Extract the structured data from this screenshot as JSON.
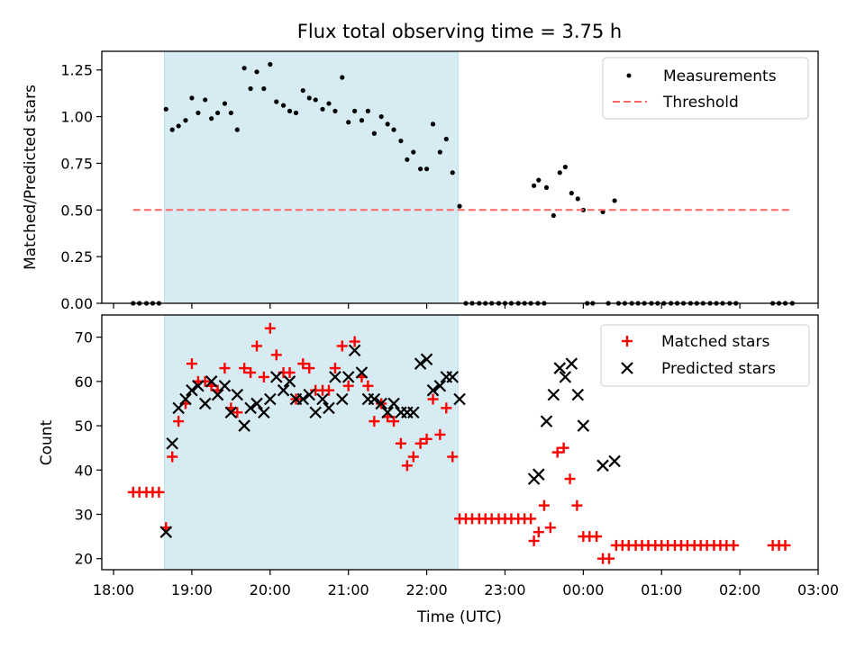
{
  "figure": {
    "title": "Flux total observing time = 3.75 h",
    "xlabel": "Time (UTC)",
    "xtick_labels": [
      "18:00",
      "19:00",
      "20:00",
      "21:00",
      "22:00",
      "23:00",
      "00:00",
      "01:00",
      "02:00",
      "03:00"
    ]
  },
  "chart_data": [
    {
      "type": "scatter",
      "ylabel": "Matched/Predicted stars",
      "ylim": [
        0,
        1.35
      ],
      "yticks": [
        0.0,
        0.25,
        0.5,
        0.75,
        1.0,
        1.25
      ],
      "ytick_labels": [
        "0.00",
        "0.25",
        "0.50",
        "0.75",
        "1.00",
        "1.25"
      ],
      "x_unit": "hours since 18:00 UTC",
      "xlim": [
        -0.15,
        9.0
      ],
      "grid": false,
      "legend": "top-right",
      "shaded_interval": {
        "x": [
          0.65,
          4.4
        ],
        "color": "#add8e6"
      },
      "series": [
        {
          "name": "Measurements",
          "marker": "dot",
          "color": "#000000",
          "points": [
            [
              0.25,
              0
            ],
            [
              0.33,
              0
            ],
            [
              0.42,
              0
            ],
            [
              0.5,
              0
            ],
            [
              0.58,
              0
            ],
            [
              0.67,
              1.04
            ],
            [
              0.75,
              0.93
            ],
            [
              0.83,
              0.95
            ],
            [
              0.92,
              0.98
            ],
            [
              1.0,
              1.1
            ],
            [
              1.08,
              1.02
            ],
            [
              1.17,
              1.09
            ],
            [
              1.25,
              0.99
            ],
            [
              1.33,
              1.02
            ],
            [
              1.42,
              1.07
            ],
            [
              1.5,
              1.02
            ],
            [
              1.58,
              0.93
            ],
            [
              1.67,
              1.26
            ],
            [
              1.75,
              1.15
            ],
            [
              1.83,
              1.24
            ],
            [
              1.92,
              1.15
            ],
            [
              2.0,
              1.28
            ],
            [
              2.08,
              1.08
            ],
            [
              2.17,
              1.06
            ],
            [
              2.25,
              1.03
            ],
            [
              2.33,
              1.02
            ],
            [
              2.42,
              1.14
            ],
            [
              2.5,
              1.1
            ],
            [
              2.58,
              1.09
            ],
            [
              2.67,
              1.04
            ],
            [
              2.75,
              1.07
            ],
            [
              2.83,
              1.03
            ],
            [
              2.92,
              1.21
            ],
            [
              3.0,
              0.97
            ],
            [
              3.08,
              1.03
            ],
            [
              3.17,
              0.98
            ],
            [
              3.25,
              1.03
            ],
            [
              3.33,
              0.91
            ],
            [
              3.42,
              1.0
            ],
            [
              3.5,
              0.96
            ],
            [
              3.58,
              0.93
            ],
            [
              3.67,
              0.87
            ],
            [
              3.75,
              0.77
            ],
            [
              3.83,
              0.81
            ],
            [
              3.92,
              0.72
            ],
            [
              4.0,
              0.72
            ],
            [
              4.08,
              0.96
            ],
            [
              4.17,
              0.81
            ],
            [
              4.25,
              0.88
            ],
            [
              4.33,
              0.7
            ],
            [
              4.42,
              0.52
            ],
            [
              4.5,
              0
            ],
            [
              4.58,
              0
            ],
            [
              4.67,
              0
            ],
            [
              4.75,
              0
            ],
            [
              4.83,
              0
            ],
            [
              4.92,
              0
            ],
            [
              5.0,
              0
            ],
            [
              5.08,
              0
            ],
            [
              5.17,
              0
            ],
            [
              5.25,
              0
            ],
            [
              5.33,
              0
            ],
            [
              5.42,
              0
            ],
            [
              5.5,
              0
            ],
            [
              5.37,
              0.63
            ],
            [
              5.43,
              0.66
            ],
            [
              5.53,
              0.62
            ],
            [
              5.62,
              0.47
            ],
            [
              5.7,
              0.7
            ],
            [
              5.77,
              0.73
            ],
            [
              5.85,
              0.59
            ],
            [
              5.93,
              0.56
            ],
            [
              6.0,
              0.5
            ],
            [
              6.05,
              0
            ],
            [
              6.12,
              0
            ],
            [
              6.25,
              0.49
            ],
            [
              6.32,
              0
            ],
            [
              6.4,
              0.55
            ],
            [
              6.45,
              0
            ],
            [
              6.53,
              0
            ],
            [
              6.62,
              0
            ],
            [
              6.7,
              0
            ],
            [
              6.78,
              0
            ],
            [
              6.87,
              0
            ],
            [
              6.95,
              0
            ],
            [
              7.03,
              0
            ],
            [
              7.12,
              0
            ],
            [
              7.2,
              0
            ],
            [
              7.28,
              0
            ],
            [
              7.37,
              0
            ],
            [
              7.45,
              0
            ],
            [
              7.53,
              0
            ],
            [
              7.62,
              0
            ],
            [
              7.7,
              0
            ],
            [
              7.78,
              0
            ],
            [
              7.87,
              0
            ],
            [
              7.95,
              0
            ],
            [
              8.42,
              0
            ],
            [
              8.5,
              0
            ],
            [
              8.58,
              0
            ],
            [
              8.67,
              0
            ]
          ]
        },
        {
          "name": "Threshold",
          "marker": "dashed-line",
          "color": "#ff6666",
          "points": [
            [
              0.25,
              0.5
            ],
            [
              8.67,
              0.5
            ]
          ]
        }
      ]
    },
    {
      "type": "scatter",
      "ylabel": "Count",
      "ylim": [
        17.5,
        75
      ],
      "yticks": [
        20,
        30,
        40,
        50,
        60,
        70
      ],
      "ytick_labels": [
        "20",
        "30",
        "40",
        "50",
        "60",
        "70"
      ],
      "x_unit": "hours since 18:00 UTC",
      "xlim": [
        -0.15,
        9.0
      ],
      "grid": false,
      "legend": "top-right",
      "shaded_interval": {
        "x": [
          0.65,
          4.4
        ],
        "color": "#add8e6"
      },
      "series": [
        {
          "name": "Matched stars",
          "marker": "plus",
          "color": "#ff0000",
          "points": [
            [
              0.25,
              35
            ],
            [
              0.33,
              35
            ],
            [
              0.42,
              35
            ],
            [
              0.5,
              35
            ],
            [
              0.58,
              35
            ],
            [
              0.67,
              27
            ],
            [
              0.75,
              43
            ],
            [
              0.83,
              51
            ],
            [
              0.92,
              55
            ],
            [
              1.0,
              64
            ],
            [
              1.08,
              60
            ],
            [
              1.17,
              60
            ],
            [
              1.25,
              59
            ],
            [
              1.33,
              58
            ],
            [
              1.42,
              63
            ],
            [
              1.5,
              54
            ],
            [
              1.58,
              53
            ],
            [
              1.67,
              63
            ],
            [
              1.75,
              62
            ],
            [
              1.83,
              68
            ],
            [
              1.92,
              61
            ],
            [
              2.0,
              72
            ],
            [
              2.08,
              66
            ],
            [
              2.17,
              62
            ],
            [
              2.25,
              62
            ],
            [
              2.33,
              56
            ],
            [
              2.42,
              64
            ],
            [
              2.5,
              63
            ],
            [
              2.58,
              58
            ],
            [
              2.67,
              58
            ],
            [
              2.75,
              58
            ],
            [
              2.83,
              63
            ],
            [
              2.92,
              68
            ],
            [
              3.0,
              59
            ],
            [
              3.08,
              69
            ],
            [
              3.17,
              61
            ],
            [
              3.25,
              59
            ],
            [
              3.33,
              51
            ],
            [
              3.42,
              55
            ],
            [
              3.5,
              52
            ],
            [
              3.58,
              51
            ],
            [
              3.67,
              46
            ],
            [
              3.75,
              41
            ],
            [
              3.83,
              43
            ],
            [
              3.92,
              46
            ],
            [
              4.0,
              47
            ],
            [
              4.08,
              56
            ],
            [
              4.17,
              48
            ],
            [
              4.25,
              54
            ],
            [
              4.33,
              43
            ],
            [
              4.42,
              29
            ],
            [
              4.5,
              29
            ],
            [
              4.58,
              29
            ],
            [
              4.67,
              29
            ],
            [
              4.75,
              29
            ],
            [
              4.83,
              29
            ],
            [
              4.92,
              29
            ],
            [
              5.0,
              29
            ],
            [
              5.08,
              29
            ],
            [
              5.17,
              29
            ],
            [
              5.25,
              29
            ],
            [
              5.33,
              29
            ],
            [
              5.37,
              24
            ],
            [
              5.43,
              26
            ],
            [
              5.5,
              32
            ],
            [
              5.58,
              27
            ],
            [
              5.67,
              44
            ],
            [
              5.75,
              45
            ],
            [
              5.83,
              38
            ],
            [
              5.92,
              32
            ],
            [
              6.0,
              25
            ],
            [
              6.08,
              25
            ],
            [
              6.17,
              25
            ],
            [
              6.25,
              20
            ],
            [
              6.33,
              20
            ],
            [
              6.42,
              23
            ],
            [
              6.5,
              23
            ],
            [
              6.58,
              23
            ],
            [
              6.67,
              23
            ],
            [
              6.75,
              23
            ],
            [
              6.83,
              23
            ],
            [
              6.92,
              23
            ],
            [
              7.0,
              23
            ],
            [
              7.08,
              23
            ],
            [
              7.17,
              23
            ],
            [
              7.25,
              23
            ],
            [
              7.33,
              23
            ],
            [
              7.42,
              23
            ],
            [
              7.5,
              23
            ],
            [
              7.58,
              23
            ],
            [
              7.67,
              23
            ],
            [
              7.75,
              23
            ],
            [
              7.83,
              23
            ],
            [
              7.92,
              23
            ],
            [
              8.42,
              23
            ],
            [
              8.5,
              23
            ],
            [
              8.58,
              23
            ]
          ]
        },
        {
          "name": "Predicted stars",
          "marker": "x",
          "color": "#000000",
          "points": [
            [
              0.67,
              26
            ],
            [
              0.75,
              46
            ],
            [
              0.83,
              54
            ],
            [
              0.92,
              56
            ],
            [
              1.0,
              58
            ],
            [
              1.08,
              59
            ],
            [
              1.17,
              55
            ],
            [
              1.25,
              60
            ],
            [
              1.33,
              57
            ],
            [
              1.42,
              59
            ],
            [
              1.5,
              53
            ],
            [
              1.58,
              57
            ],
            [
              1.67,
              50
            ],
            [
              1.75,
              54
            ],
            [
              1.83,
              55
            ],
            [
              1.92,
              53
            ],
            [
              2.0,
              56
            ],
            [
              2.08,
              61
            ],
            [
              2.17,
              58
            ],
            [
              2.25,
              60
            ],
            [
              2.33,
              56
            ],
            [
              2.42,
              56
            ],
            [
              2.5,
              57
            ],
            [
              2.58,
              53
            ],
            [
              2.67,
              56
            ],
            [
              2.75,
              54
            ],
            [
              2.83,
              61
            ],
            [
              2.92,
              56
            ],
            [
              3.0,
              61
            ],
            [
              3.08,
              67
            ],
            [
              3.17,
              62
            ],
            [
              3.25,
              56
            ],
            [
              3.33,
              56
            ],
            [
              3.42,
              55
            ],
            [
              3.5,
              53
            ],
            [
              3.58,
              55
            ],
            [
              3.67,
              53
            ],
            [
              3.75,
              53
            ],
            [
              3.83,
              53
            ],
            [
              3.92,
              64
            ],
            [
              4.0,
              65
            ],
            [
              4.08,
              58
            ],
            [
              4.17,
              59
            ],
            [
              4.25,
              61
            ],
            [
              4.33,
              61
            ],
            [
              4.42,
              56
            ],
            [
              5.37,
              38
            ],
            [
              5.43,
              39
            ],
            [
              5.53,
              51
            ],
            [
              5.62,
              57
            ],
            [
              5.7,
              63
            ],
            [
              5.77,
              61
            ],
            [
              5.85,
              64
            ],
            [
              5.93,
              57
            ],
            [
              6.0,
              50
            ],
            [
              6.25,
              41
            ],
            [
              6.4,
              42
            ]
          ]
        }
      ]
    }
  ]
}
